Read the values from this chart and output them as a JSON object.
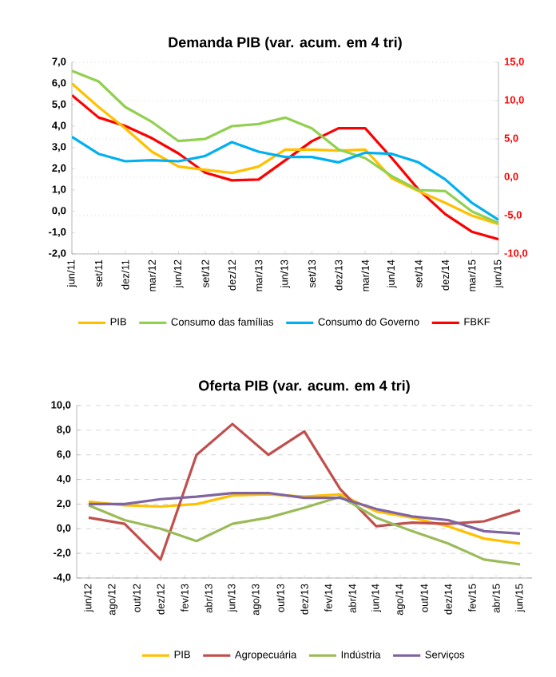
{
  "chart_data": [
    {
      "type": "line",
      "title": "Demanda PIB (var. acum. em 4 tri)",
      "categories": [
        "jun/11",
        "set/11",
        "dez/11",
        "mar/12",
        "jun/12",
        "set/12",
        "dez/12",
        "mar/13",
        "jun/13",
        "set/13",
        "dez/13",
        "mar/14",
        "jun/14",
        "set/14",
        "dez/14",
        "mar/15",
        "jun/15"
      ],
      "series": [
        {
          "name": "PIB",
          "color": "#ffc000",
          "values": [
            6.0,
            4.9,
            3.9,
            2.8,
            2.1,
            1.95,
            1.8,
            2.1,
            2.9,
            2.9,
            2.85,
            2.9,
            1.55,
            0.95,
            0.4,
            -0.2,
            -0.6
          ]
        },
        {
          "name": "Consumo das famílias",
          "color": "#92d050",
          "values": [
            6.6,
            6.1,
            4.9,
            4.2,
            3.3,
            3.4,
            4.0,
            4.1,
            4.4,
            3.9,
            2.9,
            2.5,
            1.65,
            1.0,
            0.95,
            0.0,
            -0.55
          ]
        },
        {
          "name": "Consumo do Governo",
          "color": "#00b0f0",
          "values": [
            3.5,
            2.7,
            2.35,
            2.4,
            2.35,
            2.6,
            3.25,
            2.8,
            2.55,
            2.55,
            2.3,
            2.75,
            2.7,
            2.3,
            1.5,
            0.4,
            -0.4
          ]
        },
        {
          "name": "FBKF",
          "color": "#ff0000",
          "axis": "y2",
          "values": [
            10.7,
            7.8,
            6.7,
            5.1,
            3.1,
            0.6,
            -0.4,
            -0.3,
            2.2,
            4.7,
            6.4,
            6.4,
            2.5,
            -1.6,
            -4.8,
            -7.1,
            -8.1
          ]
        }
      ],
      "ylim": [
        -2,
        7
      ],
      "yticks": [
        {
          "value": -2,
          "label": "-2,0"
        },
        {
          "value": -1,
          "label": "-1,0"
        },
        {
          "value": 0,
          "label": "0,0"
        },
        {
          "value": 1,
          "label": "1,0"
        },
        {
          "value": 2,
          "label": "2,0"
        },
        {
          "value": 3,
          "label": "3,0"
        },
        {
          "value": 4,
          "label": "4,0"
        },
        {
          "value": 5,
          "label": "5,0"
        },
        {
          "value": 6,
          "label": "6,0"
        },
        {
          "value": 7,
          "label": "7,0"
        }
      ],
      "y2lim": [
        -10,
        15
      ],
      "y2ticks": [
        {
          "value": -10,
          "label": "-10,0"
        },
        {
          "value": -5,
          "label": "-5,0"
        },
        {
          "value": 0,
          "label": "0,0"
        },
        {
          "value": 5,
          "label": "5,0"
        },
        {
          "value": 10,
          "label": "10,0"
        },
        {
          "value": 15,
          "label": "15,0"
        }
      ],
      "grid": "y2",
      "legend": "bottom",
      "marker": "none"
    },
    {
      "type": "line",
      "title": "Oferta PIB (var. acum. em 4 tri)",
      "x": [
        "2012-06",
        "2012-09",
        "2012-12",
        "2013-03",
        "2013-06",
        "2013-09",
        "2013-12",
        "2014-03",
        "2014-06",
        "2014-09",
        "2014-12",
        "2015-03",
        "2015-06"
      ],
      "series": [
        {
          "name": "PIB",
          "color": "#ffc000",
          "values": [
            2.2,
            1.9,
            1.8,
            2.0,
            2.7,
            2.8,
            2.6,
            2.8,
            1.4,
            0.9,
            0.2,
            -0.8,
            -1.2
          ]
        },
        {
          "name": "Agropecuária",
          "color": "#c0504d",
          "values": [
            0.9,
            0.4,
            -2.5,
            6.0,
            8.5,
            6.0,
            7.9,
            3.2,
            0.2,
            0.5,
            0.4,
            0.6,
            1.5
          ]
        },
        {
          "name": "Indústria",
          "color": "#9bbb59",
          "values": [
            1.9,
            0.7,
            0.0,
            -1.0,
            0.4,
            0.9,
            1.7,
            2.6,
            0.9,
            -0.2,
            -1.2,
            -2.5,
            -2.9
          ]
        },
        {
          "name": "Serviços",
          "color": "#8064a2",
          "values": [
            2.0,
            2.0,
            2.4,
            2.6,
            2.9,
            2.9,
            2.5,
            2.5,
            1.6,
            1.0,
            0.7,
            -0.2,
            -0.4
          ]
        }
      ],
      "xlim": [
        "2012-05",
        "2015-07"
      ],
      "xticks": [
        {
          "value": "2012-06",
          "label": "jun/12"
        },
        {
          "value": "2012-08",
          "label": "ago/12"
        },
        {
          "value": "2012-10",
          "label": "out/12"
        },
        {
          "value": "2012-12",
          "label": "dez/12"
        },
        {
          "value": "2013-02",
          "label": "fev/13"
        },
        {
          "value": "2013-04",
          "label": "abr/13"
        },
        {
          "value": "2013-06",
          "label": "jun/13"
        },
        {
          "value": "2013-08",
          "label": "ago/13"
        },
        {
          "value": "2013-10",
          "label": "out/13"
        },
        {
          "value": "2013-12",
          "label": "dez/13"
        },
        {
          "value": "2014-02",
          "label": "fev/14"
        },
        {
          "value": "2014-04",
          "label": "abr/14"
        },
        {
          "value": "2014-06",
          "label": "jun/14"
        },
        {
          "value": "2014-08",
          "label": "ago/14"
        },
        {
          "value": "2014-10",
          "label": "out/14"
        },
        {
          "value": "2014-12",
          "label": "dez/14"
        },
        {
          "value": "2015-02",
          "label": "fev/15"
        },
        {
          "value": "2015-04",
          "label": "abr/15"
        },
        {
          "value": "2015-06",
          "label": "jun/15"
        }
      ],
      "ylim": [
        -4,
        10
      ],
      "yticks": [
        {
          "value": -4,
          "label": "-4,0"
        },
        {
          "value": -2,
          "label": "-2,0"
        },
        {
          "value": 0,
          "label": "0,0"
        },
        {
          "value": 2,
          "label": "2,0"
        },
        {
          "value": 4,
          "label": "4,0"
        },
        {
          "value": 6,
          "label": "6,0"
        },
        {
          "value": 8,
          "label": "8,0"
        },
        {
          "value": 10,
          "label": "10,0"
        }
      ],
      "grid": "y",
      "legend": "bottom",
      "marker": "none"
    }
  ]
}
